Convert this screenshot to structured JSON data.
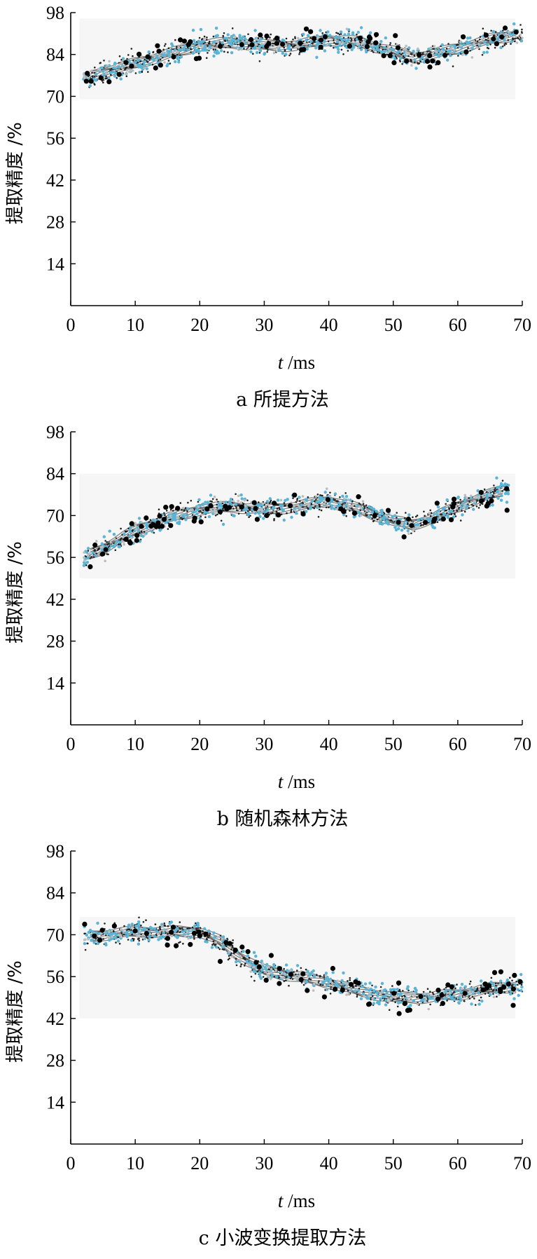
{
  "chart_data": [
    {
      "type": "scatter",
      "caption": "a 所提方法",
      "xlabel_var": "t",
      "xlabel_unit": "/ms",
      "ylabel": "提取精度 /%",
      "xlim": [
        0,
        70
      ],
      "ylim": [
        0,
        98
      ],
      "x_ticks": [
        "0",
        "10",
        "20",
        "30",
        "40",
        "50",
        "60",
        "70"
      ],
      "y_ticks": [
        "14",
        "28",
        "42",
        "56",
        "70",
        "84",
        "98"
      ],
      "trend": {
        "x": [
          2,
          5,
          10,
          15,
          20,
          25,
          30,
          35,
          40,
          45,
          50,
          53,
          56,
          60,
          65,
          70
        ],
        "y": [
          76,
          78,
          81,
          84,
          87,
          88,
          87,
          87,
          89,
          88,
          85,
          83,
          84,
          86,
          89,
          91
        ]
      }
    },
    {
      "type": "scatter",
      "caption": "b 随机森林方法",
      "xlabel_var": "t",
      "xlabel_unit": "/ms",
      "ylabel": "提取精度 /%",
      "xlim": [
        0,
        70
      ],
      "ylim": [
        0,
        98
      ],
      "x_ticks": [
        "0",
        "10",
        "20",
        "30",
        "40",
        "50",
        "60",
        "70"
      ],
      "y_ticks": [
        "14",
        "28",
        "42",
        "56",
        "70",
        "84",
        "98"
      ],
      "trend": {
        "x": [
          2,
          5,
          10,
          15,
          20,
          25,
          30,
          35,
          40,
          45,
          50,
          53,
          56,
          60,
          65,
          68
        ],
        "y": [
          56,
          59,
          65,
          69,
          72,
          73,
          72,
          73,
          75,
          72,
          68,
          67,
          69,
          73,
          77,
          79
        ]
      }
    },
    {
      "type": "scatter",
      "caption": "c 小波变换提取方法",
      "xlabel_var": "t",
      "xlabel_unit": "/ms",
      "ylabel": "提取精度 /%",
      "xlim": [
        0,
        70
      ],
      "ylim": [
        0,
        98
      ],
      "x_ticks": [
        "0",
        "10",
        "20",
        "30",
        "40",
        "50",
        "60",
        "70"
      ],
      "y_ticks": [
        "14",
        "28",
        "42",
        "56",
        "70",
        "84",
        "98"
      ],
      "trend": {
        "x": [
          2,
          5,
          10,
          15,
          20,
          23,
          26,
          30,
          35,
          40,
          45,
          50,
          55,
          60,
          65,
          70
        ],
        "y": [
          69,
          70,
          71,
          71,
          71,
          68,
          63,
          58,
          56,
          54,
          51,
          49,
          49,
          50,
          52,
          53
        ]
      }
    }
  ]
}
